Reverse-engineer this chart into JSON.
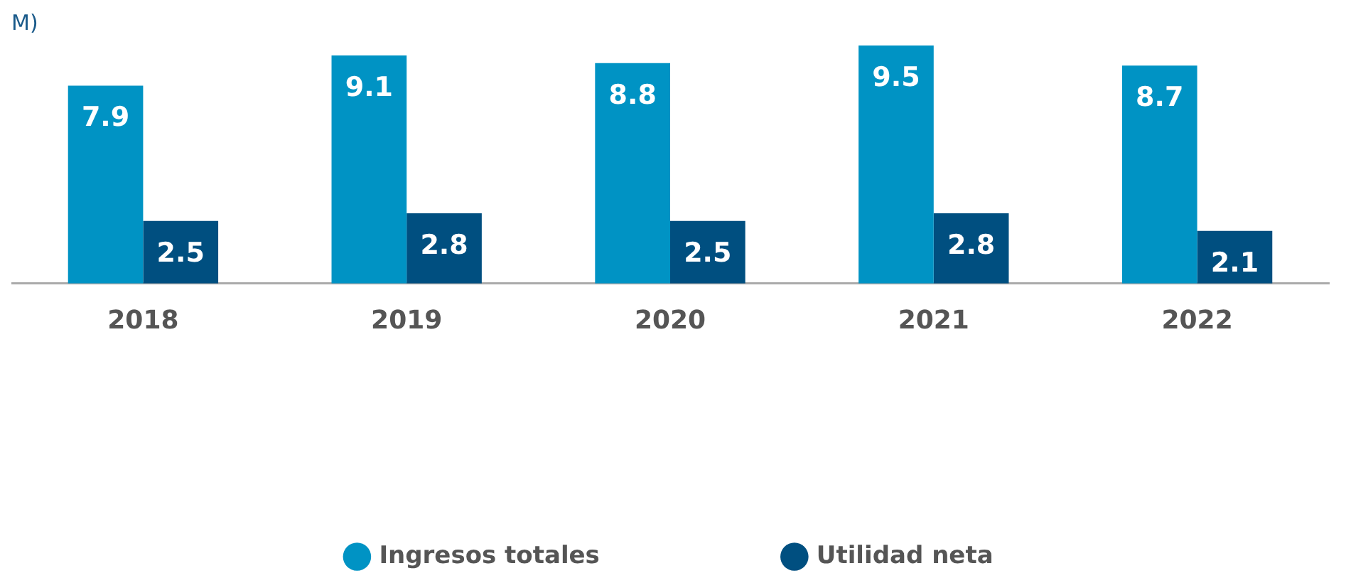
{
  "chart_data": {
    "type": "bar",
    "title": "M)",
    "categories": [
      "2018",
      "2019",
      "2020",
      "2021",
      "2022"
    ],
    "series": [
      {
        "name": "Ingresos totales",
        "color": "#0093c4",
        "values": [
          7.9,
          9.1,
          8.8,
          9.5,
          8.7
        ]
      },
      {
        "name": "Utilidad neta",
        "color": "#004f80",
        "values": [
          2.5,
          2.8,
          2.5,
          2.8,
          2.1
        ]
      }
    ],
    "data_labels": true,
    "legend": "bottom",
    "grid": false,
    "tick_labels": "x"
  }
}
